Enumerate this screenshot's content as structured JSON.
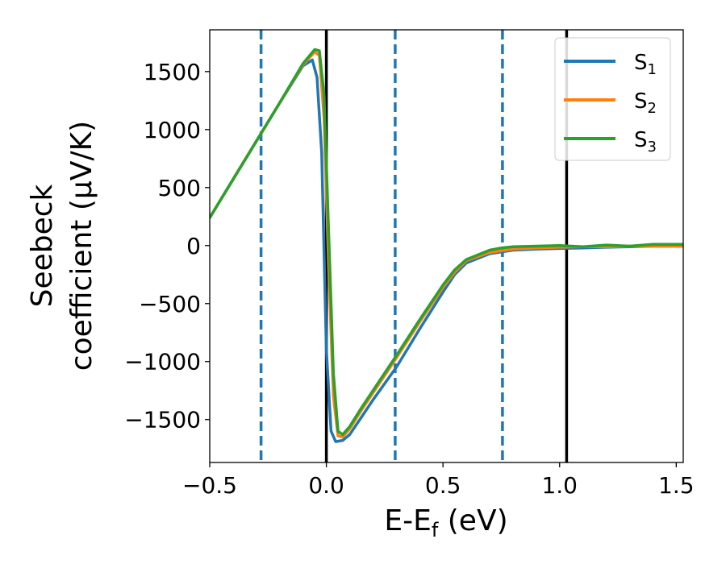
{
  "chart_data": {
    "type": "line",
    "title": "",
    "xlabel": "E-E_f (eV)",
    "xlabel_parts": {
      "main": "E-E",
      "sub": "f",
      "tail": " (eV)"
    },
    "ylabel_line1": "Seebeck",
    "ylabel_line2": "coefficient  (μV/K)",
    "xlim": [
      -0.5,
      1.53
    ],
    "ylim": [
      -1870,
      1860
    ],
    "xticks": [
      -0.5,
      0.0,
      0.5,
      1.0,
      1.5
    ],
    "xtick_labels": [
      "−0.5",
      "0.0",
      "0.5",
      "1.0",
      "1.5"
    ],
    "yticks": [
      -1500,
      -1000,
      -500,
      0,
      500,
      1000,
      1500
    ],
    "ytick_labels": [
      "−1500",
      "−1000",
      "−500",
      "0",
      "500",
      "1000",
      "1500"
    ],
    "grid": false,
    "legend_position": "top-right",
    "vlines_solid": [
      0.0,
      1.03
    ],
    "vlines_dashed": [
      -0.28,
      0.295,
      0.755
    ],
    "vline_solid_color": "#000000",
    "vline_dashed_color": "#1f77b4",
    "series": [
      {
        "name": "S_1",
        "label_main": "S",
        "label_sub": "1",
        "color": "#1f77b4",
        "x": [
          -0.5,
          -0.4,
          -0.3,
          -0.2,
          -0.1,
          -0.06,
          -0.04,
          -0.02,
          0.0,
          0.02,
          0.04,
          0.07,
          0.1,
          0.15,
          0.2,
          0.3,
          0.4,
          0.5,
          0.55,
          0.6,
          0.7,
          0.8,
          0.9,
          1.0,
          1.1,
          1.2,
          1.3,
          1.4,
          1.53
        ],
        "y": [
          240,
          570,
          900,
          1230,
          1550,
          1600,
          1450,
          800,
          -900,
          -1600,
          -1690,
          -1680,
          -1630,
          -1480,
          -1330,
          -1050,
          -720,
          -400,
          -250,
          -150,
          -70,
          -40,
          -30,
          -25,
          -20,
          -15,
          -10,
          -5,
          -5
        ]
      },
      {
        "name": "S_2",
        "label_main": "S",
        "label_sub": "2",
        "color": "#ff7f0e",
        "x": [
          -0.5,
          -0.4,
          -0.3,
          -0.2,
          -0.1,
          -0.05,
          -0.03,
          -0.01,
          0.01,
          0.03,
          0.05,
          0.07,
          0.1,
          0.15,
          0.2,
          0.3,
          0.4,
          0.5,
          0.55,
          0.6,
          0.7,
          0.8,
          0.9,
          1.0,
          1.1,
          1.2,
          1.3,
          1.4,
          1.53
        ],
        "y": [
          240,
          570,
          900,
          1230,
          1560,
          1670,
          1640,
          1100,
          -200,
          -1300,
          -1640,
          -1650,
          -1580,
          -1420,
          -1270,
          -970,
          -660,
          -360,
          -230,
          -130,
          -60,
          -30,
          -20,
          -15,
          -10,
          -10,
          -5,
          -5,
          -5
        ]
      },
      {
        "name": "S_3",
        "label_main": "S",
        "label_sub": "3",
        "color": "#2ca02c",
        "x": [
          -0.5,
          -0.4,
          -0.3,
          -0.2,
          -0.1,
          -0.05,
          -0.03,
          -0.01,
          0.01,
          0.03,
          0.05,
          0.07,
          0.1,
          0.15,
          0.2,
          0.3,
          0.4,
          0.5,
          0.55,
          0.6,
          0.7,
          0.75,
          0.8,
          0.9,
          1.0,
          1.1,
          1.2,
          1.3,
          1.4,
          1.53
        ],
        "y": [
          240,
          570,
          900,
          1230,
          1570,
          1690,
          1680,
          1300,
          100,
          -1100,
          -1600,
          -1630,
          -1560,
          -1400,
          -1250,
          -950,
          -640,
          -340,
          -210,
          -120,
          -40,
          -20,
          -10,
          -5,
          0,
          -10,
          5,
          -5,
          10,
          10
        ]
      }
    ]
  }
}
